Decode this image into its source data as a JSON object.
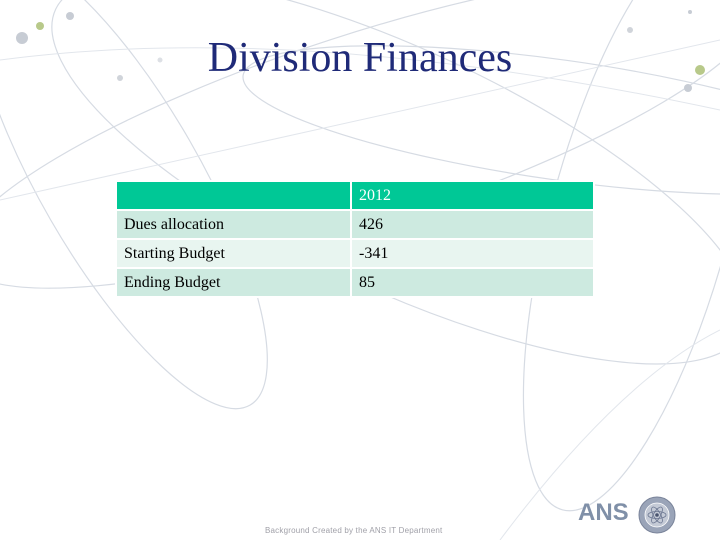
{
  "slide": {
    "title": "Division Finances",
    "footer": "Background Created by the ANS IT Department",
    "logo_text": "ANS"
  },
  "table": {
    "header": [
      "",
      "2012"
    ],
    "rows": [
      {
        "label": "Dues allocation",
        "value": "426"
      },
      {
        "label": "Starting Budget",
        "value": "-341"
      },
      {
        "label": "Ending Budget",
        "value": "85"
      }
    ]
  },
  "colors": {
    "title": "#1f2a78",
    "header_fill": "#00c896",
    "row_fill_dark": "#cdeae0",
    "row_fill_light": "#e8f5f0"
  },
  "icons": [
    "atom-orbit-background",
    "ans-seal-icon"
  ]
}
